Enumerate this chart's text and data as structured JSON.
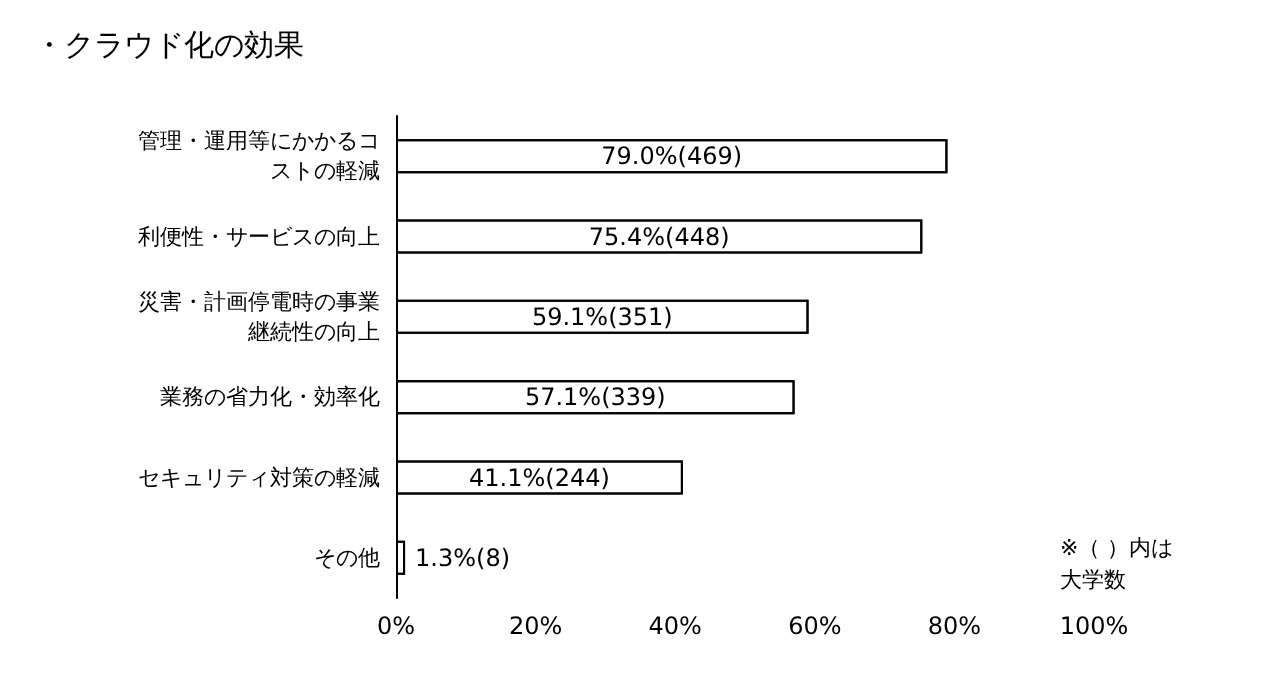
{
  "chart_data": {
    "type": "bar",
    "orientation": "horizontal",
    "title": "・クラウド化の効果",
    "categories": [
      "管理・運用等にかかるコストの軽減",
      "利便性・サービスの向上",
      "災害・計画停電時の事業継続性の向上",
      "業務の省力化・効率化",
      "セキュリティ対策の軽減",
      "その他"
    ],
    "values": [
      79.0,
      75.4,
      59.1,
      57.1,
      41.1,
      1.3
    ],
    "value_labels": [
      "79.0%(469)",
      "75.4%(448)",
      "59.1%(351)",
      "57.1%(339)",
      "41.1%(244)",
      "1.3%(8)"
    ],
    "color": "#ffffff",
    "xlim": [
      0,
      100
    ],
    "xticks": [
      {
        "value": 0,
        "label": "0%"
      },
      {
        "value": 20,
        "label": "20%"
      },
      {
        "value": 40,
        "label": "40%"
      },
      {
        "value": 60,
        "label": "60%"
      },
      {
        "value": 80,
        "label": "80%"
      },
      {
        "value": 100,
        "label": "100%"
      }
    ],
    "annotations": [
      "※（ ）内は大学数"
    ],
    "grid": false
  }
}
